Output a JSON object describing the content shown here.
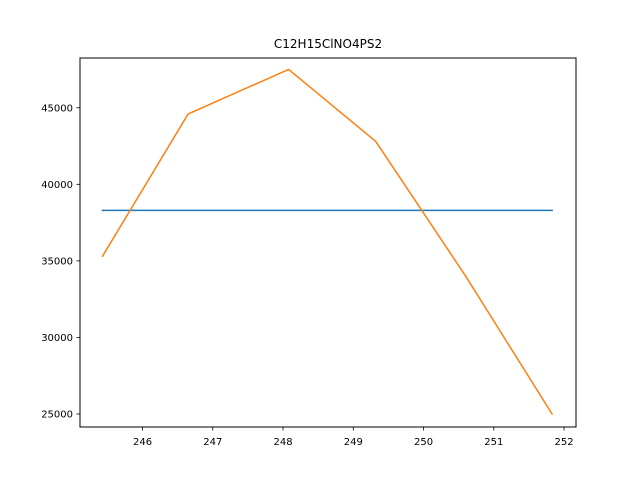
{
  "chart_data": {
    "type": "line",
    "title": "C12H15ClNO4PS2",
    "xlabel": "",
    "ylabel": "",
    "xlim": [
      245.11,
      252.17
    ],
    "ylim": [
      24150,
      48250
    ],
    "x_ticks": [
      246,
      247,
      248,
      249,
      250,
      251,
      252
    ],
    "y_ticks": [
      25000,
      30000,
      35000,
      40000,
      45000
    ],
    "grid": false,
    "legend": "none",
    "series": [
      {
        "color": "#1f77b4",
        "x": [
          245.43,
          251.83
        ],
        "y": [
          38300,
          38300
        ]
      },
      {
        "color": "#ff7f0e",
        "x": [
          245.43,
          246.65,
          248.08,
          249.32,
          250.6,
          251.83
        ],
        "y": [
          35300,
          44600,
          47500,
          42800,
          34000,
          25000
        ]
      }
    ]
  }
}
